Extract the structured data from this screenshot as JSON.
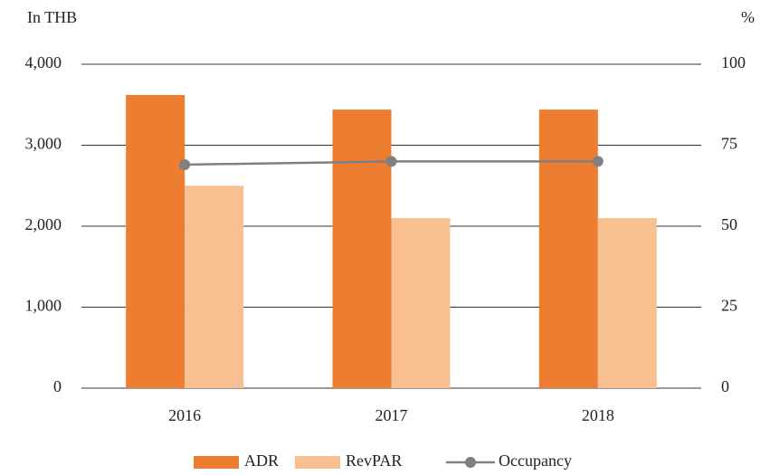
{
  "chart_data": {
    "type": "bar",
    "ylabel": "In THB",
    "y2label": "%",
    "categories": [
      "2016",
      "2017",
      "2018"
    ],
    "series": [
      {
        "name": "ADR",
        "color": "#ed7d31",
        "values": [
          3620,
          3440,
          3440
        ]
      },
      {
        "name": "RevPAR",
        "color": "#f8c090",
        "values": [
          2500,
          2100,
          2100
        ]
      },
      {
        "name": "Occupancy",
        "color": "#808080",
        "type": "line",
        "axis": "y2",
        "values": [
          69,
          70,
          70
        ]
      }
    ],
    "ylim": [
      0,
      4000
    ],
    "yticks": [
      {
        "value": 0,
        "label": "0"
      },
      {
        "value": 1000,
        "label": "1,000"
      },
      {
        "value": 2000,
        "label": "2,000"
      },
      {
        "value": 3000,
        "label": "3,000"
      },
      {
        "value": 4000,
        "label": "4,000"
      }
    ],
    "y2lim": [
      0,
      100
    ],
    "y2ticks": [
      0,
      25,
      50,
      75,
      100
    ],
    "grid": true,
    "legend": "bottom"
  }
}
